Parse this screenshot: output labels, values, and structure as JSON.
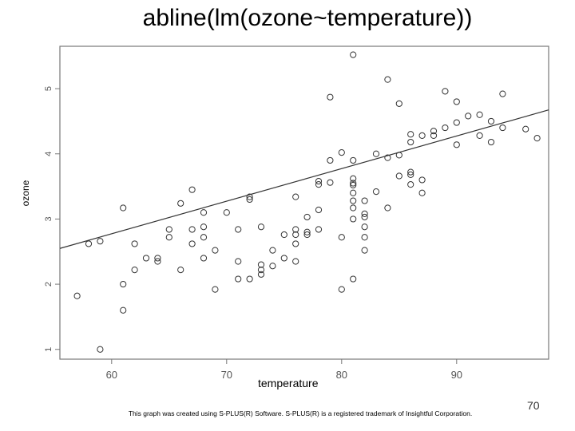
{
  "slide": {
    "title": "abline(lm(ozone~temperature))",
    "page_number": "70",
    "footnote": "This graph was created using S-PLUS(R) Software. S-PLUS(R) is a registered trademark of Insightful Corporation."
  },
  "chart_data": {
    "type": "scatter",
    "title": "abline(lm(ozone~temperature))",
    "xlabel": "temperature",
    "ylabel": "ozone",
    "xlim": [
      55.5,
      98
    ],
    "ylim": [
      0.85,
      5.65
    ],
    "xticks": [
      60,
      70,
      80,
      90
    ],
    "yticks": [
      1,
      2,
      3,
      4,
      5
    ],
    "grid": false,
    "regression_line": {
      "intercept": -0.2261,
      "slope": 0.05,
      "x_range": [
        55.5,
        98
      ]
    },
    "points": [
      [
        57,
        1.82
      ],
      [
        58,
        2.62
      ],
      [
        59,
        2.66
      ],
      [
        59,
        1.0
      ],
      [
        61,
        3.17
      ],
      [
        61,
        2.0
      ],
      [
        61,
        1.6
      ],
      [
        62,
        2.62
      ],
      [
        62,
        2.22
      ],
      [
        63,
        2.4
      ],
      [
        64,
        2.4
      ],
      [
        64,
        2.35
      ],
      [
        65,
        2.84
      ],
      [
        65,
        2.72
      ],
      [
        66,
        3.24
      ],
      [
        66,
        2.22
      ],
      [
        67,
        3.45
      ],
      [
        67,
        2.84
      ],
      [
        67,
        2.62
      ],
      [
        68,
        3.1
      ],
      [
        68,
        2.88
      ],
      [
        68,
        2.72
      ],
      [
        68,
        2.4
      ],
      [
        69,
        2.52
      ],
      [
        69,
        1.92
      ],
      [
        70,
        3.1
      ],
      [
        71,
        2.84
      ],
      [
        71,
        2.35
      ],
      [
        71,
        2.08
      ],
      [
        72,
        3.34
      ],
      [
        72,
        3.3
      ],
      [
        72,
        2.08
      ],
      [
        73,
        2.88
      ],
      [
        73,
        2.3
      ],
      [
        73,
        2.22
      ],
      [
        73,
        2.15
      ],
      [
        74,
        2.52
      ],
      [
        74,
        2.28
      ],
      [
        75,
        2.76
      ],
      [
        75,
        2.4
      ],
      [
        76,
        3.34
      ],
      [
        76,
        2.84
      ],
      [
        76,
        2.76
      ],
      [
        76,
        2.62
      ],
      [
        76,
        2.35
      ],
      [
        77,
        3.03
      ],
      [
        77,
        2.8
      ],
      [
        77,
        2.76
      ],
      [
        78,
        3.58
      ],
      [
        78,
        3.53
      ],
      [
        78,
        3.14
      ],
      [
        78,
        2.84
      ],
      [
        79,
        4.87
      ],
      [
        79,
        3.9
      ],
      [
        79,
        3.56
      ],
      [
        80,
        4.02
      ],
      [
        80,
        2.72
      ],
      [
        80,
        1.92
      ],
      [
        81,
        5.52
      ],
      [
        81,
        3.9
      ],
      [
        81,
        3.62
      ],
      [
        81,
        3.55
      ],
      [
        81,
        3.52
      ],
      [
        81,
        3.4
      ],
      [
        81,
        3.28
      ],
      [
        81,
        3.17
      ],
      [
        81,
        3.0
      ],
      [
        81,
        2.08
      ],
      [
        82,
        3.28
      ],
      [
        82,
        3.08
      ],
      [
        82,
        3.03
      ],
      [
        82,
        2.88
      ],
      [
        82,
        2.72
      ],
      [
        82,
        2.52
      ],
      [
        83,
        4.0
      ],
      [
        83,
        3.42
      ],
      [
        84,
        5.14
      ],
      [
        84,
        3.94
      ],
      [
        84,
        3.17
      ],
      [
        85,
        4.77
      ],
      [
        85,
        3.98
      ],
      [
        85,
        3.66
      ],
      [
        86,
        4.3
      ],
      [
        86,
        4.18
      ],
      [
        86,
        3.72
      ],
      [
        86,
        3.68
      ],
      [
        86,
        3.53
      ],
      [
        87,
        4.28
      ],
      [
        87,
        3.6
      ],
      [
        87,
        3.4
      ],
      [
        88,
        4.35
      ],
      [
        88,
        4.28
      ],
      [
        89,
        4.96
      ],
      [
        89,
        4.4
      ],
      [
        90,
        4.8
      ],
      [
        90,
        4.48
      ],
      [
        90,
        4.14
      ],
      [
        91,
        4.58
      ],
      [
        92,
        4.6
      ],
      [
        92,
        4.28
      ],
      [
        93,
        4.5
      ],
      [
        93,
        4.18
      ],
      [
        94,
        4.92
      ],
      [
        94,
        4.4
      ],
      [
        96,
        4.38
      ],
      [
        97,
        4.24
      ]
    ]
  }
}
